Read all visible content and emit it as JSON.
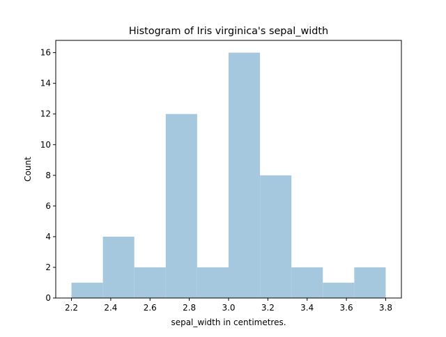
{
  "chart_data": {
    "type": "bar",
    "title": "Histogram of Iris virginica's sepal_width",
    "xlabel": "sepal_width in centimetres.",
    "ylabel": "Count",
    "bin_edges": [
      2.2,
      2.36,
      2.52,
      2.68,
      2.84,
      3.0,
      3.16,
      3.32,
      3.48,
      3.64,
      3.8
    ],
    "values": [
      1,
      4,
      2,
      12,
      2,
      16,
      8,
      2,
      1,
      2
    ],
    "xlim": [
      2.12,
      3.88
    ],
    "ylim": [
      0,
      16.8
    ],
    "x_ticks": [
      "2.2",
      "2.4",
      "2.6",
      "2.8",
      "3.0",
      "3.2",
      "3.4",
      "3.6",
      "3.8"
    ],
    "y_ticks": [
      "0",
      "2",
      "4",
      "6",
      "8",
      "10",
      "12",
      "14",
      "16"
    ],
    "bar_color": "#a6c8df",
    "grid": false,
    "legend": false
  }
}
